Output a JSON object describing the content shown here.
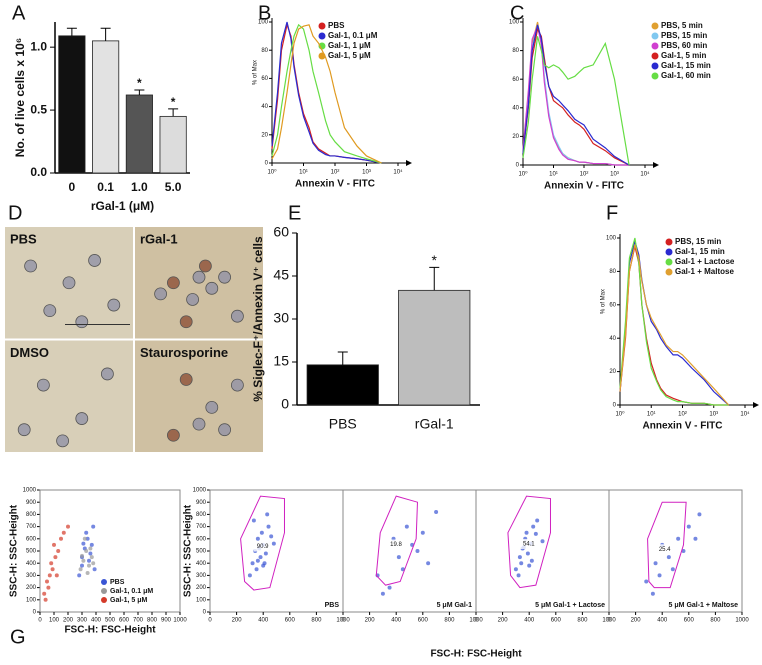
{
  "chart_data": [
    {
      "panel": "A",
      "type": "bar",
      "categories": [
        "0",
        "0.1",
        "1.0",
        "5.0"
      ],
      "values": [
        1.09,
        1.05,
        0.62,
        0.45
      ],
      "errors": [
        0.06,
        0.1,
        0.04,
        0.06
      ],
      "colors": [
        "#111111",
        "#e2e2e2",
        "#555555",
        "#dcdcdc"
      ],
      "significance": [
        null,
        null,
        "*",
        "*"
      ],
      "xlabel": "rGal-1 (μM)",
      "ylabel": "No. of live cells x 10⁶",
      "ylim": [
        0,
        1.2
      ],
      "yticks": [
        {
          "value": 0,
          "label": "0.0"
        },
        0.5,
        {
          "value": 1,
          "label": "1.0"
        }
      ]
    },
    {
      "panel": "B",
      "type": "line",
      "xlabel": "Annexin V - FITC",
      "ylabel": "% of Max",
      "xscale": "log",
      "xlim": [
        1,
        10000
      ],
      "xticks": [
        {
          "value": 1,
          "label": "10⁰"
        },
        {
          "value": 10,
          "label": "10¹"
        },
        {
          "value": 100,
          "label": "10²"
        },
        {
          "value": 1000,
          "label": "10³"
        },
        {
          "value": 10000,
          "label": "10⁴"
        }
      ],
      "ylim": [
        0,
        100
      ],
      "yticks": [
        0,
        20,
        40,
        60,
        80,
        100
      ],
      "legend": "upper right",
      "x": [
        1,
        1.5,
        2,
        3,
        4,
        5,
        7,
        10,
        15,
        20,
        30,
        50,
        70,
        100,
        200,
        500,
        1000,
        3000
      ],
      "series": [
        {
          "name": "PBS",
          "color": "#d42020",
          "values": [
            10,
            45,
            80,
            98,
            90,
            70,
            50,
            35,
            25,
            15,
            10,
            7,
            5,
            5,
            4,
            3,
            2,
            0
          ]
        },
        {
          "name": "Gal-1, 0.1 μM",
          "color": "#2a2ad0",
          "values": [
            12,
            50,
            85,
            100,
            88,
            68,
            48,
            33,
            22,
            14,
            9,
            6,
            5,
            5,
            4,
            3,
            2,
            0
          ]
        },
        {
          "name": "Gal-1, 1 μM",
          "color": "#66dd44",
          "values": [
            5,
            20,
            40,
            65,
            80,
            90,
            98,
            95,
            80,
            65,
            50,
            30,
            20,
            15,
            8,
            5,
            3,
            0
          ]
        },
        {
          "name": "Gal-1, 5 μM",
          "color": "#e09a20",
          "values": [
            3,
            10,
            25,
            50,
            70,
            85,
            95,
            97,
            98,
            90,
            85,
            75,
            65,
            50,
            25,
            12,
            5,
            0
          ]
        }
      ]
    },
    {
      "panel": "C",
      "type": "line",
      "xlabel": "Annexin V - FITC",
      "xscale": "log",
      "xlim": [
        1,
        10000
      ],
      "xticks": [
        {
          "value": 1,
          "label": "10⁰"
        },
        {
          "value": 10,
          "label": "10¹"
        },
        {
          "value": 100,
          "label": "10²"
        },
        {
          "value": 1000,
          "label": "10³"
        },
        {
          "value": 10000,
          "label": "10⁴"
        }
      ],
      "ylim": [
        0,
        100
      ],
      "yticks": [
        0,
        20,
        40,
        60,
        80,
        100
      ],
      "legend": "outside right",
      "x": [
        1,
        1.5,
        2,
        3,
        4,
        5,
        7,
        10,
        15,
        20,
        30,
        50,
        70,
        100,
        200,
        500,
        1000,
        3000
      ],
      "series": [
        {
          "name": "PBS, 5 min",
          "color": "#e0a030",
          "values": [
            10,
            50,
            85,
            100,
            85,
            60,
            35,
            20,
            12,
            8,
            5,
            3,
            2,
            2,
            1,
            1,
            0,
            0
          ]
        },
        {
          "name": "PBS, 15 min",
          "color": "#80c8f0",
          "values": [
            9,
            48,
            82,
            98,
            86,
            62,
            37,
            21,
            13,
            8,
            5,
            3,
            2,
            2,
            1,
            1,
            0,
            0
          ]
        },
        {
          "name": "PBS, 60 min",
          "color": "#d040d0",
          "values": [
            11,
            52,
            88,
            97,
            84,
            58,
            34,
            19,
            11,
            7,
            4,
            3,
            2,
            2,
            1,
            1,
            0,
            0
          ]
        },
        {
          "name": "Gal-1, 5 min",
          "color": "#d42020",
          "values": [
            8,
            40,
            75,
            95,
            90,
            75,
            55,
            45,
            42,
            40,
            35,
            30,
            28,
            25,
            15,
            10,
            5,
            0
          ]
        },
        {
          "name": "Gal-1, 15 min",
          "color": "#2a2ad0",
          "values": [
            8,
            42,
            80,
            98,
            88,
            72,
            55,
            48,
            45,
            42,
            38,
            32,
            30,
            28,
            18,
            12,
            6,
            0
          ]
        },
        {
          "name": "Gal-1, 60 min",
          "color": "#66dd44",
          "values": [
            5,
            30,
            60,
            90,
            80,
            70,
            68,
            70,
            68,
            65,
            60,
            62,
            65,
            68,
            70,
            85,
            60,
            0
          ]
        }
      ]
    },
    {
      "panel": "D",
      "type": "image",
      "tiles": [
        "PBS",
        "rGal-1",
        "DMSO",
        "Staurosporine"
      ]
    },
    {
      "panel": "E",
      "type": "bar",
      "categories": [
        "PBS",
        "rGal-1"
      ],
      "values": [
        14,
        40
      ],
      "errors": [
        4.5,
        8
      ],
      "colors": [
        "#000000",
        "#bdbdbd"
      ],
      "significance": [
        null,
        "*"
      ],
      "ylabel": "% Siglec-F⁺/Annexin V⁺ cells",
      "ylim": [
        0,
        60
      ],
      "yticks": [
        0,
        15,
        30,
        45,
        60
      ]
    },
    {
      "panel": "F",
      "type": "line",
      "xlabel": "Annexin V - FITC",
      "ylabel": "% of Max",
      "xscale": "log",
      "xlim": [
        1,
        10000
      ],
      "xticks": [
        {
          "value": 1,
          "label": "10⁰"
        },
        {
          "value": 10,
          "label": "10¹"
        },
        {
          "value": 100,
          "label": "10²"
        },
        {
          "value": 1000,
          "label": "10³"
        },
        {
          "value": 10000,
          "label": "10⁴"
        }
      ],
      "ylim": [
        0,
        100
      ],
      "yticks": [
        0,
        20,
        40,
        60,
        80,
        100
      ],
      "legend": "upper right",
      "x": [
        1,
        1.5,
        2,
        3,
        4,
        5,
        7,
        10,
        15,
        20,
        30,
        50,
        70,
        100,
        200,
        500,
        1000,
        3000
      ],
      "series": [
        {
          "name": "PBS, 15 min",
          "color": "#d42020",
          "values": [
            8,
            40,
            80,
            95,
            85,
            60,
            40,
            25,
            15,
            10,
            6,
            4,
            3,
            2,
            1,
            1,
            0,
            0
          ]
        },
        {
          "name": "Gal-1, 15 min",
          "color": "#2a2ad0",
          "values": [
            8,
            45,
            85,
            98,
            90,
            75,
            60,
            50,
            45,
            40,
            35,
            30,
            30,
            28,
            22,
            15,
            8,
            0
          ]
        },
        {
          "name": "Gal-1 + Lactose",
          "color": "#66dd44",
          "values": [
            10,
            50,
            88,
            100,
            85,
            60,
            38,
            22,
            14,
            9,
            5,
            3,
            2,
            2,
            1,
            1,
            0,
            0
          ]
        },
        {
          "name": "Gal-1 + Maltose",
          "color": "#e0a030",
          "values": [
            8,
            42,
            80,
            96,
            88,
            74,
            60,
            52,
            46,
            42,
            36,
            32,
            32,
            30,
            24,
            16,
            10,
            0
          ]
        }
      ]
    },
    {
      "panel": "G",
      "type": "scatter",
      "xlabel": "FSC-H: FSC-Height",
      "ylabel": "SSC-H: SSC-Height",
      "xlim": [
        0,
        1000
      ],
      "ylim": [
        0,
        1000
      ],
      "xticks": [
        0,
        100,
        200,
        300,
        400,
        500,
        600,
        700,
        800,
        900,
        1000
      ],
      "yticks": [
        0,
        100,
        200,
        300,
        400,
        500,
        600,
        700,
        800,
        900,
        1000
      ],
      "legend": "lower right",
      "series": [
        {
          "name": "PBS",
          "color": "#3a55d4",
          "x": [
            280,
            300,
            320,
            340,
            360,
            380,
            300,
            330,
            350,
            370,
            310,
            390
          ],
          "y": [
            300,
            450,
            520,
            600,
            480,
            700,
            380,
            650,
            420,
            550,
            560,
            350
          ]
        },
        {
          "name": "Gal-1, 0.1 μM",
          "color": "#999999",
          "x": [
            290,
            310,
            330,
            350,
            370,
            320,
            340,
            360,
            300,
            380
          ],
          "y": [
            350,
            420,
            500,
            380,
            450,
            600,
            320,
            520,
            460,
            400
          ]
        },
        {
          "name": "Gal-1, 5 μM",
          "color": "#d43a2a",
          "x": [
            30,
            50,
            70,
            90,
            110,
            130,
            60,
            80,
            100,
            150,
            170,
            40,
            120,
            200
          ],
          "y": [
            150,
            250,
            300,
            350,
            450,
            500,
            200,
            400,
            550,
            600,
            650,
            100,
            300,
            700
          ]
        }
      ]
    },
    {
      "type": "scatter",
      "xlabel": "FSC-H: FSC-Height",
      "ylabel": "SSC-H: SSC-Height",
      "xlim": [
        0,
        1000
      ],
      "ylim": [
        0,
        1000
      ],
      "xticks": [
        0,
        200,
        400,
        600,
        800,
        1000
      ],
      "yticks": [
        0,
        100,
        200,
        300,
        400,
        500,
        600,
        700,
        800,
        900,
        1000
      ],
      "color": "#3a55d4",
      "facets": [
        {
          "name": "PBS",
          "gate_label": 90.9,
          "gate": [
            [
              260,
              250
            ],
            [
              230,
              600
            ],
            [
              380,
              950
            ],
            [
              560,
              930
            ],
            [
              560,
              650
            ],
            [
              450,
              200
            ],
            [
              330,
              180
            ]
          ],
          "x": [
            300,
            320,
            340,
            360,
            380,
            400,
            420,
            440,
            460,
            480,
            350,
            390,
            410,
            370,
            330,
            430,
            360,
            400
          ],
          "y": [
            300,
            400,
            500,
            600,
            450,
            550,
            480,
            700,
            620,
            560,
            350,
            650,
            400,
            520,
            750,
            800,
            420,
            380
          ]
        },
        {
          "name": "5 μM Gal-1",
          "gate_label": 19.8,
          "gate": [
            [
              250,
              300
            ],
            [
              280,
              650
            ],
            [
              400,
              950
            ],
            [
              560,
              900
            ],
            [
              550,
              600
            ],
            [
              430,
              250
            ],
            [
              320,
              220
            ]
          ],
          "x": [
            260,
            380,
            420,
            480,
            520,
            600,
            700,
            350,
            450,
            560,
            300,
            640
          ],
          "y": [
            300,
            600,
            450,
            700,
            550,
            650,
            820,
            200,
            350,
            500,
            150,
            400
          ]
        },
        {
          "name": "5 μM Gal-1 + Lactose",
          "gate_label": 54.1,
          "gate": [
            [
              260,
              300
            ],
            [
              240,
              650
            ],
            [
              380,
              950
            ],
            [
              560,
              930
            ],
            [
              560,
              650
            ],
            [
              450,
              220
            ],
            [
              330,
              200
            ]
          ],
          "x": [
            300,
            330,
            350,
            370,
            390,
            410,
            430,
            450,
            340,
            380,
            420,
            360,
            400,
            320,
            460,
            500
          ],
          "y": [
            350,
            450,
            520,
            600,
            480,
            560,
            700,
            640,
            400,
            650,
            420,
            530,
            380,
            300,
            750,
            580
          ]
        },
        {
          "name": "5 μM Gal-1 + Maltose",
          "gate_label": 25.4,
          "gate": [
            [
              300,
              250
            ],
            [
              290,
              600
            ],
            [
              400,
              900
            ],
            [
              580,
              900
            ],
            [
              560,
              550
            ],
            [
              460,
              200
            ],
            [
              340,
              200
            ]
          ],
          "x": [
            280,
            350,
            400,
            450,
            520,
            600,
            680,
            380,
            480,
            560,
            330,
            650
          ],
          "y": [
            250,
            400,
            550,
            450,
            600,
            700,
            800,
            300,
            350,
            500,
            150,
            600
          ]
        }
      ]
    }
  ]
}
